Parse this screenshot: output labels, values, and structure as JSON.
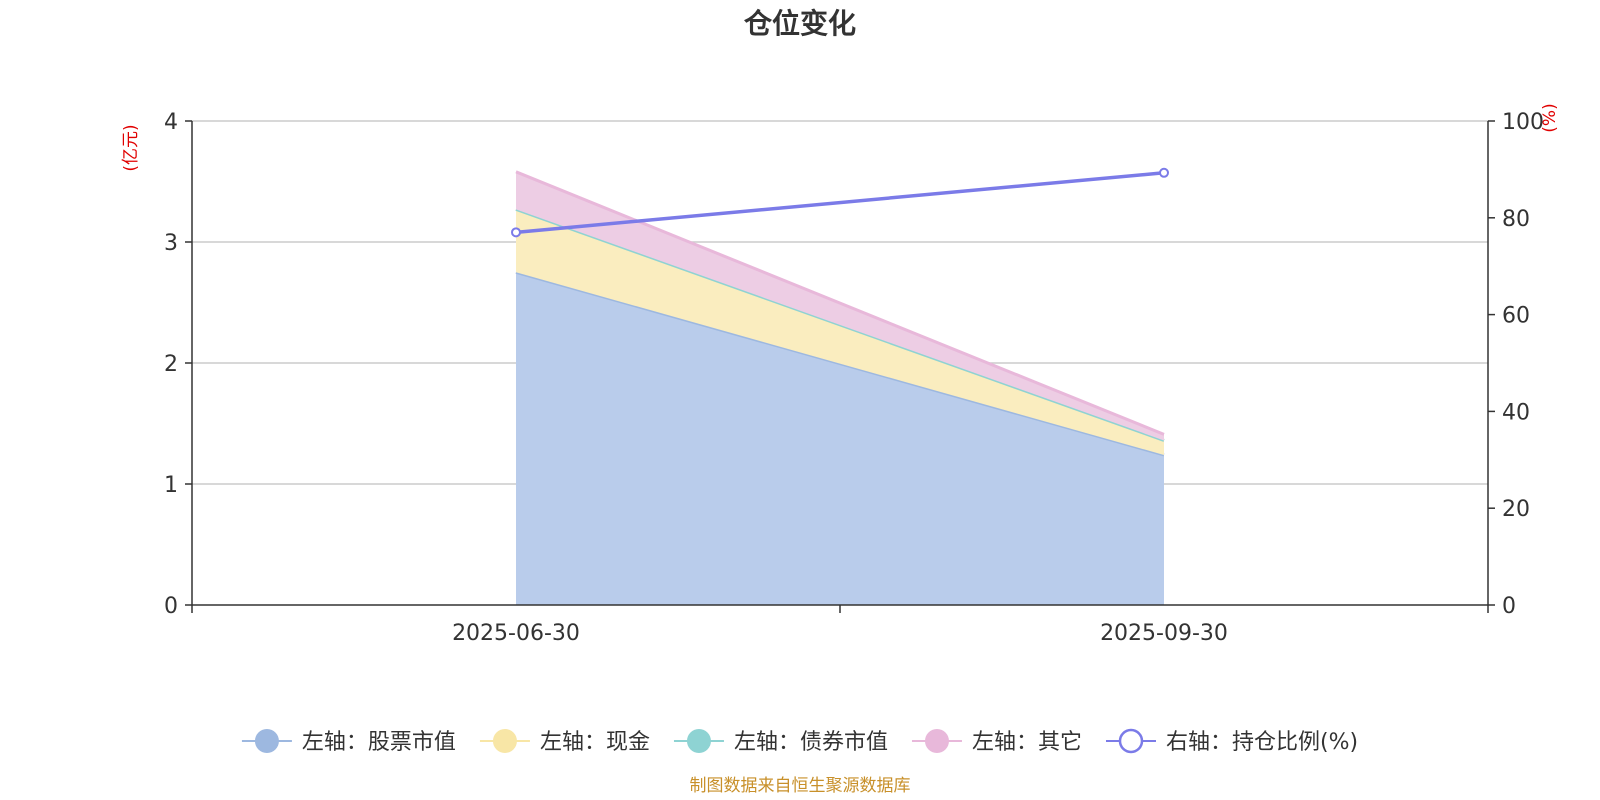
{
  "chart_data": {
    "type": "area",
    "title": "仓位变化",
    "x": [
      "2025-06-30",
      "2025-09-30"
    ],
    "left_axis": {
      "unit": "(亿元)",
      "ylim": [
        0,
        4
      ],
      "ticks": [
        "0",
        "1",
        "2",
        "3",
        "4"
      ]
    },
    "right_axis": {
      "unit": "(%)",
      "ylim": [
        0,
        100
      ],
      "ticks": [
        "0",
        "20",
        "40",
        "60",
        "80",
        "100"
      ]
    },
    "stacked": true,
    "series": [
      {
        "name": "左轴：股票市值",
        "axis": "left",
        "type": "area",
        "color": "#9db8e0",
        "fill": "#b9cceb",
        "values": [
          2.75,
          1.24
        ]
      },
      {
        "name": "左轴：现金",
        "axis": "left",
        "type": "area",
        "color": "#f8e6a6",
        "fill": "#faedbf",
        "values": [
          0.52,
          0.12
        ]
      },
      {
        "name": "左轴：债券市值",
        "axis": "left",
        "type": "area",
        "color": "#8ed3d3",
        "fill": "#b6e2e2",
        "values": [
          0,
          0
        ]
      },
      {
        "name": "左轴：其它",
        "axis": "left",
        "type": "area",
        "color": "#e8b8da",
        "fill": "#edcde4",
        "values": [
          0.31,
          0.05
        ]
      },
      {
        "name": "右轴：持仓比例(%)",
        "axis": "right",
        "type": "line",
        "color": "#7b7be8",
        "values": [
          77,
          89.3
        ]
      }
    ],
    "grid": true,
    "legend_position": "bottom"
  },
  "footer": {
    "source": "制图数据来自恒生聚源数据库"
  }
}
